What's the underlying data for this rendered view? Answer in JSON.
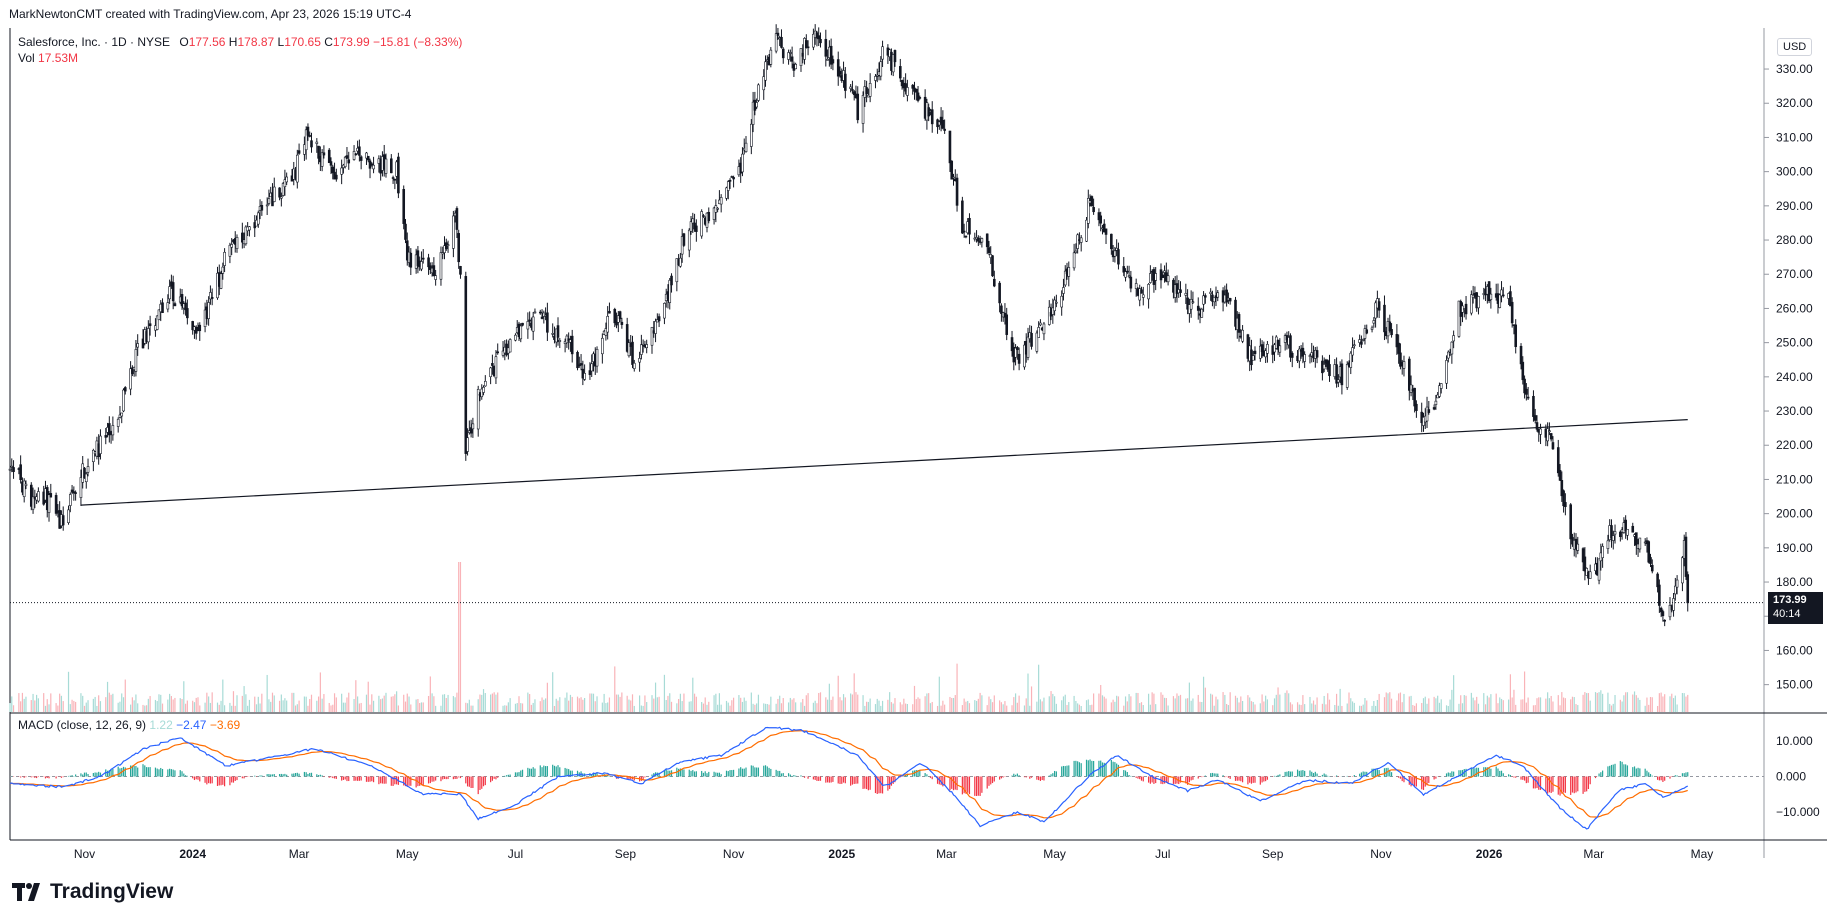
{
  "header": {
    "credit": "MarkNewtonCMT created with TradingView.com, Apr 23, 2026 15:19 UTC-4"
  },
  "legend": {
    "symbol": "Salesforce, Inc. · 1D · NYSE",
    "open_label": "O",
    "open": "177.56",
    "high_label": "H",
    "high": "178.87",
    "low_label": "L",
    "low": "170.65",
    "close_label": "C",
    "close": "173.99",
    "change": "−15.81 (−8.33%)",
    "vol_label": "Vol",
    "vol": "17.53M"
  },
  "macd_legend": {
    "label": "MACD (close, 12, 26, 9)",
    "hist": "1.22",
    "macd": "−2.47",
    "signal": "−3.69"
  },
  "price_scale": {
    "currency": "USD",
    "last_price": "173.99",
    "countdown": "40:14"
  },
  "footer": {
    "logo_text": "TradingView"
  },
  "colors": {
    "up": "#26a69a",
    "down": "#f23645",
    "candle": "#131722",
    "macd_line": "#2962ff",
    "signal_line": "#ff6d00",
    "vol_up": "#a7dbd6",
    "vol_down": "#f9b3b8",
    "grid": "#e0e3eb"
  },
  "chart_data": {
    "type": "candlestick",
    "title": "Salesforce, Inc. · 1D · NYSE",
    "y_ticks": [
      150,
      160,
      170,
      180,
      190,
      200,
      210,
      220,
      230,
      240,
      250,
      260,
      270,
      280,
      290,
      300,
      310,
      320,
      330
    ],
    "ylim": [
      142,
      342
    ],
    "x_ticks": [
      {
        "label": "Nov",
        "date": "2023-11-01"
      },
      {
        "label": "2024",
        "date": "2024-01-01"
      },
      {
        "label": "Mar",
        "date": "2024-03-01"
      },
      {
        "label": "May",
        "date": "2024-05-01"
      },
      {
        "label": "Jul",
        "date": "2024-07-01"
      },
      {
        "label": "Sep",
        "date": "2024-09-01"
      },
      {
        "label": "Nov",
        "date": "2024-11-01"
      },
      {
        "label": "2025",
        "date": "2025-01-01"
      },
      {
        "label": "Mar",
        "date": "2025-03-01"
      },
      {
        "label": "May",
        "date": "2025-05-01"
      },
      {
        "label": "Jul",
        "date": "2025-07-01"
      },
      {
        "label": "Sep",
        "date": "2025-09-01"
      },
      {
        "label": "Nov",
        "date": "2025-11-01"
      },
      {
        "label": "2026",
        "date": "2026-01-01"
      },
      {
        "label": "Mar",
        "date": "2026-03-01"
      },
      {
        "label": "May",
        "date": "2026-05-01"
      }
    ],
    "xlim": [
      "2023-09-20",
      "2026-06-05"
    ],
    "close_path": [
      [
        "2023-09-20",
        216
      ],
      [
        "2023-10-01",
        204
      ],
      [
        "2023-10-10",
        205
      ],
      [
        "2023-10-19",
        197
      ],
      [
        "2023-10-30",
        211
      ],
      [
        "2023-11-20",
        228
      ],
      [
        "2023-12-01",
        248
      ],
      [
        "2023-12-20",
        265
      ],
      [
        "2024-01-05",
        253
      ],
      [
        "2024-01-20",
        275
      ],
      [
        "2024-02-10",
        290
      ],
      [
        "2024-02-28",
        300
      ],
      [
        "2024-03-05",
        312
      ],
      [
        "2024-03-20",
        300
      ],
      [
        "2024-04-05",
        305
      ],
      [
        "2024-04-25",
        300
      ],
      [
        "2024-05-01",
        275
      ],
      [
        "2024-05-15",
        270
      ],
      [
        "2024-05-28",
        286
      ],
      [
        "2024-05-31",
        270
      ],
      [
        "2024-06-03",
        218
      ],
      [
        "2024-06-10",
        235
      ],
      [
        "2024-06-28",
        250
      ],
      [
        "2024-07-15",
        258
      ],
      [
        "2024-08-01",
        248
      ],
      [
        "2024-08-10",
        238
      ],
      [
        "2024-08-25",
        260
      ],
      [
        "2024-09-05",
        246
      ],
      [
        "2024-09-20",
        255
      ],
      [
        "2024-10-05",
        282
      ],
      [
        "2024-10-25",
        292
      ],
      [
        "2024-11-05",
        300
      ],
      [
        "2024-11-15",
        325
      ],
      [
        "2024-11-25",
        340
      ],
      [
        "2024-12-05",
        330
      ],
      [
        "2024-12-15",
        340
      ],
      [
        "2024-12-28",
        333
      ],
      [
        "2025-01-10",
        318
      ],
      [
        "2025-01-25",
        335
      ],
      [
        "2025-02-08",
        325
      ],
      [
        "2025-02-28",
        310
      ],
      [
        "2025-03-10",
        285
      ],
      [
        "2025-03-25",
        275
      ],
      [
        "2025-04-08",
        245
      ],
      [
        "2025-04-20",
        252
      ],
      [
        "2025-05-05",
        265
      ],
      [
        "2025-05-20",
        290
      ],
      [
        "2025-06-01",
        280
      ],
      [
        "2025-06-15",
        265
      ],
      [
        "2025-07-01",
        270
      ],
      [
        "2025-07-20",
        260
      ],
      [
        "2025-08-05",
        265
      ],
      [
        "2025-08-20",
        245
      ],
      [
        "2025-09-05",
        250
      ],
      [
        "2025-09-25",
        245
      ],
      [
        "2025-10-10",
        240
      ],
      [
        "2025-10-30",
        260
      ],
      [
        "2025-11-15",
        242
      ],
      [
        "2025-11-25",
        226
      ],
      [
        "2025-12-05",
        238
      ],
      [
        "2025-12-15",
        260
      ],
      [
        "2026-01-02",
        265
      ],
      [
        "2026-01-12",
        262
      ],
      [
        "2026-01-20",
        240
      ],
      [
        "2026-01-28",
        225
      ],
      [
        "2026-02-05",
        222
      ],
      [
        "2026-02-10",
        210
      ],
      [
        "2026-02-15",
        195
      ],
      [
        "2026-02-28",
        180
      ],
      [
        "2026-03-10",
        195
      ],
      [
        "2026-03-20",
        196
      ],
      [
        "2026-03-30",
        190
      ],
      [
        "2026-04-05",
        180
      ],
      [
        "2026-04-10",
        166
      ],
      [
        "2026-04-15",
        175
      ],
      [
        "2026-04-21",
        190
      ],
      [
        "2026-04-23",
        174
      ]
    ],
    "trendline": {
      "from": [
        "2023-10-30",
        202.5
      ],
      "to": [
        "2026-04-23",
        227.5
      ]
    },
    "last_price_line": 173.99,
    "volume_spike": {
      "date": "2024-05-31"
    },
    "macd": {
      "y_ticks": [
        10,
        0,
        -10
      ],
      "ylim": [
        -18,
        18
      ],
      "path": [
        [
          "2023-09-20",
          -2
        ],
        [
          "2023-10-20",
          -3
        ],
        [
          "2023-11-10",
          0
        ],
        [
          "2023-12-05",
          8
        ],
        [
          "2023-12-25",
          11
        ],
        [
          "2024-01-20",
          3
        ],
        [
          "2024-02-20",
          6
        ],
        [
          "2024-03-10",
          8
        ],
        [
          "2024-04-10",
          3
        ],
        [
          "2024-05-10",
          -5
        ],
        [
          "2024-05-31",
          -5
        ],
        [
          "2024-06-10",
          -12
        ],
        [
          "2024-07-01",
          -8
        ],
        [
          "2024-07-25",
          0
        ],
        [
          "2024-08-20",
          1
        ],
        [
          "2024-09-10",
          -2
        ],
        [
          "2024-10-01",
          4
        ],
        [
          "2024-10-25",
          6
        ],
        [
          "2024-11-20",
          14
        ],
        [
          "2024-12-10",
          13
        ],
        [
          "2025-01-10",
          6
        ],
        [
          "2025-01-25",
          -3
        ],
        [
          "2025-02-15",
          4
        ],
        [
          "2025-03-05",
          -5
        ],
        [
          "2025-03-20",
          -14
        ],
        [
          "2025-04-10",
          -10
        ],
        [
          "2025-04-25",
          -13
        ],
        [
          "2025-05-20",
          0
        ],
        [
          "2025-06-05",
          6
        ],
        [
          "2025-06-25",
          0
        ],
        [
          "2025-07-15",
          -4
        ],
        [
          "2025-08-01",
          -1
        ],
        [
          "2025-08-25",
          -7
        ],
        [
          "2025-09-20",
          -1
        ],
        [
          "2025-10-15",
          -2
        ],
        [
          "2025-11-05",
          4
        ],
        [
          "2025-11-25",
          -5
        ],
        [
          "2025-12-10",
          -1
        ],
        [
          "2026-01-05",
          6
        ],
        [
          "2026-01-20",
          3
        ],
        [
          "2026-02-10",
          -9
        ],
        [
          "2026-02-25",
          -15
        ],
        [
          "2026-03-15",
          -4
        ],
        [
          "2026-03-30",
          -2
        ],
        [
          "2026-04-10",
          -6
        ],
        [
          "2026-04-23",
          -2.47
        ]
      ]
    }
  }
}
